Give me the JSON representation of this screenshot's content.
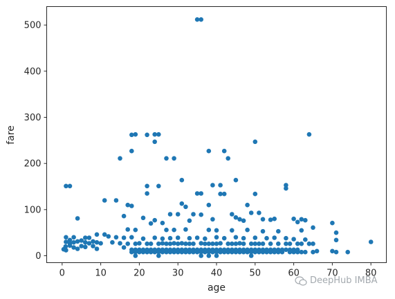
{
  "chart_data": {
    "type": "scatter",
    "title": "",
    "xlabel": "age",
    "ylabel": "fare",
    "xlim": [
      -4,
      84
    ],
    "ylim": [
      -15,
      540
    ],
    "xticks": [
      0,
      10,
      20,
      30,
      40,
      50,
      60,
      70,
      80
    ],
    "yticks": [
      0,
      100,
      200,
      300,
      400,
      500
    ],
    "marker_color": "#1f77b4",
    "grid": false,
    "series": [
      {
        "points": [
          [
            35,
            512
          ],
          [
            36,
            512
          ],
          [
            18,
            262
          ],
          [
            19,
            263
          ],
          [
            22,
            262
          ],
          [
            24,
            263
          ],
          [
            25,
            263
          ],
          [
            64,
            263
          ],
          [
            24,
            247
          ],
          [
            50,
            247
          ],
          [
            38,
            227
          ],
          [
            42,
            227
          ],
          [
            43,
            211
          ],
          [
            15,
            211
          ],
          [
            27,
            211
          ],
          [
            29,
            211
          ],
          [
            18,
            227
          ],
          [
            31,
            164
          ],
          [
            45,
            164
          ],
          [
            58,
            153
          ],
          [
            58,
            146
          ],
          [
            39,
            153
          ],
          [
            41,
            153
          ],
          [
            22,
            151
          ],
          [
            22,
            135
          ],
          [
            1,
            151
          ],
          [
            2,
            151
          ],
          [
            25,
            151
          ],
          [
            35,
            135
          ],
          [
            36,
            135
          ],
          [
            41,
            134
          ],
          [
            42,
            134
          ],
          [
            50,
            134
          ],
          [
            11,
            120
          ],
          [
            14,
            120
          ],
          [
            18,
            108
          ],
          [
            17,
            110
          ],
          [
            38,
            110
          ],
          [
            48,
            110
          ],
          [
            31,
            113
          ],
          [
            32,
            106
          ],
          [
            4,
            81
          ],
          [
            16,
            86
          ],
          [
            21,
            82
          ],
          [
            24,
            77
          ],
          [
            28,
            90
          ],
          [
            30,
            90
          ],
          [
            34,
            90
          ],
          [
            36,
            89
          ],
          [
            44,
            90
          ],
          [
            45,
            83
          ],
          [
            46,
            79
          ],
          [
            49,
            93
          ],
          [
            51,
            93
          ],
          [
            52,
            79
          ],
          [
            55,
            80
          ],
          [
            60,
            80
          ],
          [
            62,
            79
          ],
          [
            63,
            77
          ],
          [
            23,
            70
          ],
          [
            26,
            71
          ],
          [
            33,
            76
          ],
          [
            39,
            79
          ],
          [
            47,
            76
          ],
          [
            54,
            78
          ],
          [
            61,
            73
          ],
          [
            70,
            71
          ],
          [
            71,
            50
          ],
          [
            71,
            34
          ],
          [
            65,
            61
          ],
          [
            17,
            57
          ],
          [
            19,
            56
          ],
          [
            27,
            56
          ],
          [
            29,
            56
          ],
          [
            32,
            57
          ],
          [
            38,
            56
          ],
          [
            44,
            55
          ],
          [
            48,
            56
          ],
          [
            52,
            53
          ],
          [
            56,
            53
          ],
          [
            62,
            55
          ],
          [
            40,
            55
          ],
          [
            9,
            46
          ],
          [
            11,
            46
          ],
          [
            6,
            39
          ],
          [
            7,
            39
          ],
          [
            12,
            42
          ],
          [
            14,
            40
          ],
          [
            16,
            39
          ],
          [
            18,
            40
          ],
          [
            21,
            37
          ],
          [
            24,
            39
          ],
          [
            26,
            37
          ],
          [
            28,
            38
          ],
          [
            30,
            39
          ],
          [
            33,
            38
          ],
          [
            35,
            39
          ],
          [
            37,
            37
          ],
          [
            40,
            40
          ],
          [
            42,
            38
          ],
          [
            45,
            40
          ],
          [
            47,
            38
          ],
          [
            50,
            39
          ],
          [
            53,
            38
          ],
          [
            55,
            39
          ],
          [
            58,
            38
          ],
          [
            60,
            36
          ],
          [
            63,
            35
          ],
          [
            1,
            40
          ],
          [
            2,
            34
          ],
          [
            3,
            40
          ],
          [
            1,
            30
          ],
          [
            2,
            27
          ],
          [
            3,
            29
          ],
          [
            4,
            31
          ],
          [
            5,
            33
          ],
          [
            6,
            29
          ],
          [
            7,
            27
          ],
          [
            8,
            31
          ],
          [
            9,
            29
          ],
          [
            10,
            27
          ],
          [
            13,
            29
          ],
          [
            15,
            27
          ],
          [
            0.4,
            14
          ],
          [
            0.9,
            20
          ],
          [
            1,
            12
          ],
          [
            2,
            22
          ],
          [
            3,
            18
          ],
          [
            4,
            15
          ],
          [
            5,
            21
          ],
          [
            6,
            19
          ],
          [
            8,
            21
          ],
          [
            9,
            15
          ],
          [
            16,
            18
          ],
          [
            17,
            26
          ],
          [
            19,
            26
          ],
          [
            20,
            27
          ],
          [
            22,
            26
          ],
          [
            23,
            26
          ],
          [
            25,
            26
          ],
          [
            26,
            27
          ],
          [
            27,
            26
          ],
          [
            28,
            26
          ],
          [
            29,
            27
          ],
          [
            30,
            26
          ],
          [
            31,
            27
          ],
          [
            32,
            26
          ],
          [
            33,
            26
          ],
          [
            34,
            26
          ],
          [
            36,
            27
          ],
          [
            37,
            26
          ],
          [
            38,
            26
          ],
          [
            39,
            26
          ],
          [
            40,
            26
          ],
          [
            41,
            27
          ],
          [
            43,
            26
          ],
          [
            44,
            26
          ],
          [
            45,
            26
          ],
          [
            46,
            27
          ],
          [
            47,
            26
          ],
          [
            49,
            26
          ],
          [
            50,
            26
          ],
          [
            51,
            26
          ],
          [
            52,
            26
          ],
          [
            54,
            26
          ],
          [
            56,
            26
          ],
          [
            58,
            26
          ],
          [
            59,
            26
          ],
          [
            61,
            26
          ],
          [
            62,
            26
          ],
          [
            18,
            13
          ],
          [
            19,
            13
          ],
          [
            20,
            13
          ],
          [
            21,
            13
          ],
          [
            22,
            13
          ],
          [
            23,
            13
          ],
          [
            24,
            13
          ],
          [
            25,
            13
          ],
          [
            26,
            13
          ],
          [
            27,
            13
          ],
          [
            28,
            13
          ],
          [
            29,
            13
          ],
          [
            30,
            13
          ],
          [
            31,
            13
          ],
          [
            32,
            13
          ],
          [
            33,
            13
          ],
          [
            34,
            13
          ],
          [
            35,
            13
          ],
          [
            36,
            13
          ],
          [
            37,
            13
          ],
          [
            38,
            13
          ],
          [
            39,
            13
          ],
          [
            40,
            13
          ],
          [
            41,
            13
          ],
          [
            42,
            13
          ],
          [
            43,
            13
          ],
          [
            44,
            13
          ],
          [
            45,
            13
          ],
          [
            46,
            13
          ],
          [
            47,
            13
          ],
          [
            48,
            13
          ],
          [
            49,
            13
          ],
          [
            50,
            13
          ],
          [
            51,
            13
          ],
          [
            52,
            13
          ],
          [
            53,
            13
          ],
          [
            54,
            13
          ],
          [
            55,
            13
          ],
          [
            56,
            13
          ],
          [
            57,
            13
          ],
          [
            58,
            13
          ],
          [
            59,
            13
          ],
          [
            60,
            13
          ],
          [
            61,
            13
          ],
          [
            18,
            8
          ],
          [
            19,
            8
          ],
          [
            20,
            8
          ],
          [
            21,
            8
          ],
          [
            22,
            8
          ],
          [
            23,
            8
          ],
          [
            24,
            8
          ],
          [
            25,
            8
          ],
          [
            26,
            8
          ],
          [
            27,
            8
          ],
          [
            28,
            8
          ],
          [
            29,
            8
          ],
          [
            30,
            8
          ],
          [
            31,
            8
          ],
          [
            32,
            8
          ],
          [
            33,
            8
          ],
          [
            34,
            8
          ],
          [
            35,
            8
          ],
          [
            36,
            8
          ],
          [
            37,
            8
          ],
          [
            38,
            8
          ],
          [
            39,
            8
          ],
          [
            40,
            8
          ],
          [
            41,
            8
          ],
          [
            42,
            8
          ],
          [
            43,
            8
          ],
          [
            44,
            8
          ],
          [
            45,
            8
          ],
          [
            46,
            8
          ],
          [
            47,
            8
          ],
          [
            48,
            8
          ],
          [
            49,
            8
          ],
          [
            50,
            8
          ],
          [
            51,
            8
          ],
          [
            52,
            8
          ],
          [
            53,
            8
          ],
          [
            54,
            8
          ],
          [
            55,
            8
          ],
          [
            56,
            8
          ],
          [
            57,
            8
          ],
          [
            59,
            8
          ],
          [
            60,
            8
          ],
          [
            61,
            8
          ],
          [
            62,
            8
          ],
          [
            63,
            8
          ],
          [
            65,
            8
          ],
          [
            66,
            10
          ],
          [
            70,
            10
          ],
          [
            71,
            8
          ],
          [
            74,
            8
          ],
          [
            80,
            30
          ],
          [
            64,
            26
          ],
          [
            65,
            26
          ],
          [
            19,
            0
          ],
          [
            25,
            0
          ],
          [
            36,
            0
          ],
          [
            38,
            0
          ],
          [
            40,
            0
          ],
          [
            49,
            0
          ]
        ]
      }
    ]
  },
  "watermark": {
    "text": "DeepHub IMBA"
  }
}
